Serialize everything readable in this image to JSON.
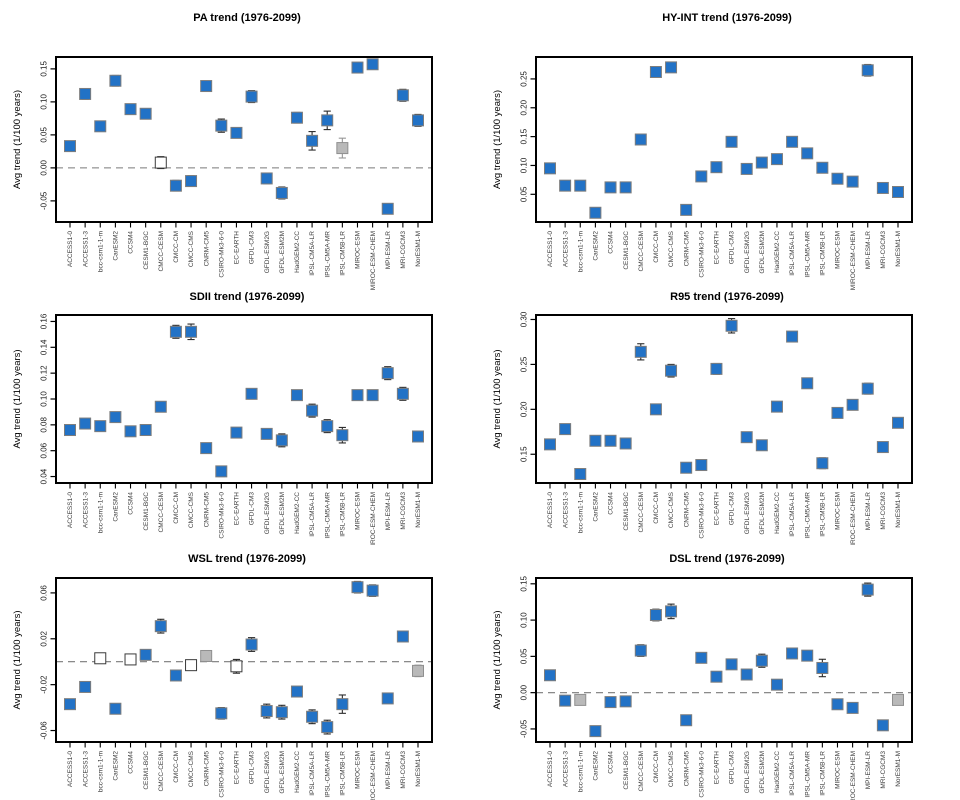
{
  "page": {
    "background": "#ffffff"
  },
  "colors": {
    "marker_blue": "#2272c6",
    "marker_blue_edge": "#7d7d7d",
    "marker_gray": "#b9b9b9",
    "marker_gray_edge": "#8f8f8f",
    "marker_open_fill": "#ffffff",
    "marker_open_edge": "#3a3a3a",
    "errorbar_dark": "#2b2b2b",
    "errorbar_gray": "#969696",
    "dashed_line": "#7a7a7a",
    "axis": "#000000"
  },
  "chart_data": [
    {
      "type": "scatter",
      "title": "PA trend (1976-2099)",
      "ylabel": "Avg trend (1/100 years)",
      "categories": [
        "ACCESS1-0",
        "ACCESS1-3",
        "bcc-csm1-1-m",
        "CanESM2",
        "CCSM4",
        "CESM1-BGC",
        "CMCC-CESM",
        "CMCC-CM",
        "CMCC-CMS",
        "CNRM-CM5",
        "CSIRO-Mk3-6-0",
        "EC-EARTH",
        "GFDL-CM3",
        "GFDL-ESM2G",
        "GFDL-ESM2M",
        "HadGEM2-CC",
        "IPSL-CM5A-LR",
        "IPSL-CM5A-MR",
        "IPSL-CM5B-LR",
        "MIROC-ESM",
        "MIROC-ESM-CHEM",
        "MPI-ESM-LR",
        "MRI-CGCM3",
        "NorESM1-M"
      ],
      "values": [
        0.033,
        0.112,
        0.063,
        0.132,
        0.089,
        0.082,
        0.008,
        -0.027,
        -0.02,
        0.124,
        0.064,
        0.053,
        0.108,
        -0.016,
        -0.038,
        0.076,
        0.041,
        0.072,
        0.03,
        0.152,
        0.157,
        -0.062,
        0.11,
        0.072
      ],
      "errors": [
        0.005,
        0.008,
        0.007,
        0.008,
        0.005,
        0.005,
        0.009,
        0.008,
        0.008,
        0.005,
        0.01,
        0.006,
        0.009,
        0.008,
        0.009,
        0.008,
        0.014,
        0.014,
        0.015,
        0.006,
        0.006,
        0.006,
        0.009,
        0.009
      ],
      "marker_overrides": {
        "6": "open",
        "18": "gray"
      },
      "yticks": [
        -0.05,
        0.0,
        0.05,
        0.1,
        0.15
      ],
      "ylim": [
        -0.082,
        0.168
      ],
      "zero_dashed_line": true,
      "grid": false,
      "legend": false
    },
    {
      "type": "scatter",
      "title": "HY-INT trend (1976-2099)",
      "ylabel": "Avg trend (1/100 years)",
      "categories": [
        "ACCESS1-0",
        "ACCESS1-3",
        "bcc-csm1-1-m",
        "CanESM2",
        "CCSM4",
        "CESM1-BGC",
        "CMCC-CESM",
        "CMCC-CM",
        "CMCC-CMS",
        "CNRM-CM5",
        "CSIRO-Mk3-6-0",
        "EC-EARTH",
        "GFDL-CM3",
        "GFDL-ESM2G",
        "GFDL-ESM2M",
        "HadGEM2-CC",
        "IPSL-CM5A-LR",
        "IPSL-CM5A-MR",
        "IPSL-CM5B-LR",
        "MIROC-ESM",
        "MIROC-ESM-CHEM",
        "MPI-ESM-LR",
        "MRI-CGCM3",
        "NorESM1-M"
      ],
      "values": [
        0.095,
        0.065,
        0.065,
        0.018,
        0.062,
        0.062,
        0.145,
        0.262,
        0.27,
        0.023,
        0.081,
        0.097,
        0.141,
        0.094,
        0.105,
        0.111,
        0.141,
        0.121,
        0.096,
        0.077,
        0.072,
        0.265,
        0.061,
        0.054
      ],
      "errors": [
        0.004,
        0.004,
        0.004,
        0.003,
        0.003,
        0.004,
        0.007,
        0.009,
        0.007,
        0.003,
        0.004,
        0.004,
        0.004,
        0.004,
        0.004,
        0.004,
        0.004,
        0.005,
        0.006,
        0.004,
        0.004,
        0.01,
        0.004,
        0.004
      ],
      "marker_overrides": {},
      "yticks": [
        0.05,
        0.1,
        0.15,
        0.2,
        0.25
      ],
      "ylim": [
        0.002,
        0.288
      ],
      "zero_dashed_line": false,
      "grid": false,
      "legend": false
    },
    {
      "type": "scatter",
      "title": "SDII trend (1976-2099)",
      "ylabel": "Avg trend (1/100 years)",
      "categories": [
        "ACCESS1-0",
        "ACCESS1-3",
        "bcc-csm1-1-m",
        "CanESM2",
        "CCSM4",
        "CESM1-BGC",
        "CMCC-CESM",
        "CMCC-CM",
        "CMCC-CMS",
        "CNRM-CM5",
        "CSIRO-Mk3-6-0",
        "EC-EARTH",
        "GFDL-CM3",
        "GFDL-ESM2G",
        "GFDL-ESM2M",
        "HadGEM2-CC",
        "IPSL-CM5A-LR",
        "IPSL-CM5A-MR",
        "IPSL-CM5B-LR",
        "MIROC-ESM",
        "MIROC-ESM-CHEM",
        "MPI-ESM-LR",
        "MRI-CGCM3",
        "NorESM1-M"
      ],
      "values": [
        0.076,
        0.081,
        0.079,
        0.086,
        0.075,
        0.076,
        0.094,
        0.152,
        0.152,
        0.062,
        0.044,
        0.074,
        0.104,
        0.073,
        0.068,
        0.103,
        0.091,
        0.079,
        0.072,
        0.103,
        0.103,
        0.12,
        0.104,
        0.071
      ],
      "errors": [
        0.003,
        0.003,
        0.003,
        0.003,
        0.003,
        0.003,
        0.004,
        0.005,
        0.006,
        0.003,
        0.004,
        0.003,
        0.004,
        0.004,
        0.005,
        0.003,
        0.005,
        0.005,
        0.006,
        0.003,
        0.003,
        0.005,
        0.005,
        0.004
      ],
      "marker_overrides": {},
      "yticks": [
        0.04,
        0.06,
        0.08,
        0.1,
        0.12,
        0.14,
        0.16
      ],
      "ylim": [
        0.035,
        0.165
      ],
      "zero_dashed_line": false,
      "grid": false,
      "legend": false
    },
    {
      "type": "scatter",
      "title": "R95 trend (1976-2099)",
      "ylabel": "Avg trend (1/100 years)",
      "categories": [
        "ACCESS1-0",
        "ACCESS1-3",
        "bcc-csm1-1-m",
        "CanESM2",
        "CCSM4",
        "CESM1-BGC",
        "CMCC-CESM",
        "CMCC-CM",
        "CMCC-CMS",
        "CNRM-CM5",
        "CSIRO-Mk3-6-0",
        "EC-EARTH",
        "GFDL-CM3",
        "GFDL-ESM2G",
        "GFDL-ESM2M",
        "HadGEM2-CC",
        "IPSL-CM5A-LR",
        "IPSL-CM5A-MR",
        "IPSL-CM5B-LR",
        "MIROC-ESM",
        "MIROC-ESM-CHEM",
        "MPI-ESM-LR",
        "MRI-CGCM3",
        "NorESM1-M"
      ],
      "values": [
        0.161,
        0.178,
        0.128,
        0.165,
        0.165,
        0.162,
        0.264,
        0.2,
        0.243,
        0.135,
        0.138,
        0.245,
        0.293,
        0.169,
        0.16,
        0.203,
        0.281,
        0.229,
        0.14,
        0.196,
        0.205,
        0.223,
        0.158,
        0.185
      ],
      "errors": [
        0.003,
        0.003,
        0.003,
        0.003,
        0.003,
        0.005,
        0.009,
        0.004,
        0.007,
        0.003,
        0.004,
        0.006,
        0.008,
        0.005,
        0.005,
        0.004,
        0.005,
        0.005,
        0.006,
        0.004,
        0.004,
        0.006,
        0.004,
        0.005
      ],
      "marker_overrides": {},
      "yticks": [
        0.15,
        0.2,
        0.25,
        0.3
      ],
      "ylim": [
        0.118,
        0.305
      ],
      "zero_dashed_line": false,
      "grid": false,
      "legend": false
    },
    {
      "type": "scatter",
      "title": "WSL trend (1976-2099)",
      "ylabel": "Avg trend (1/100 years)",
      "categories": [
        "ACCESS1-0",
        "ACCESS1-3",
        "bcc-csm1-1-m",
        "CanESM2",
        "CCSM4",
        "CESM1-BGC",
        "CMCC-CESM",
        "CMCC-CM",
        "CMCC-CMS",
        "CNRM-CM5",
        "CSIRO-Mk3-6-0",
        "EC-EARTH",
        "GFDL-CM3",
        "GFDL-ESM2G",
        "GFDL-ESM2M",
        "HadGEM2-CC",
        "IPSL-CM5A-LR",
        "IPSL-CM5A-MR",
        "IPSL-CM5B-LR",
        "MIROC-ESM",
        "MIROC-ESM-CHEM",
        "MPI-ESM-LR",
        "MRI-CGCM3",
        "NorESM1-M"
      ],
      "values": [
        -0.037,
        -0.022,
        0.003,
        -0.041,
        0.002,
        0.006,
        0.031,
        -0.012,
        -0.003,
        0.005,
        -0.045,
        -0.004,
        0.015,
        -0.043,
        -0.044,
        -0.026,
        -0.048,
        -0.057,
        -0.037,
        0.065,
        0.062,
        -0.032,
        0.022,
        -0.008
      ],
      "errors": [
        0.003,
        0.004,
        0.003,
        0.003,
        0.003,
        0.003,
        0.006,
        0.004,
        0.004,
        0.004,
        0.005,
        0.006,
        0.006,
        0.006,
        0.006,
        0.004,
        0.006,
        0.006,
        0.008,
        0.005,
        0.005,
        0.004,
        0.004,
        0.005
      ],
      "marker_overrides": {
        "2": "open",
        "4": "open",
        "8": "open",
        "9": "gray",
        "11": "open",
        "23": "gray"
      },
      "yticks": [
        -0.06,
        -0.02,
        0.02,
        0.06
      ],
      "ylim": [
        -0.07,
        0.073
      ],
      "zero_dashed_line": true,
      "grid": false,
      "legend": false
    },
    {
      "type": "scatter",
      "title": "DSL trend (1976-2099)",
      "ylabel": "Avg trend (1/100 years)",
      "categories": [
        "ACCESS1-0",
        "ACCESS1-3",
        "bcc-csm1-1-m",
        "CanESM2",
        "CCSM4",
        "CESM1-BGC",
        "CMCC-CESM",
        "CMCC-CM",
        "CMCC-CMS",
        "CNRM-CM5",
        "CSIRO-Mk3-6-0",
        "EC-EARTH",
        "GFDL-CM3",
        "GFDL-ESM2G",
        "GFDL-ESM2M",
        "HadGEM2-CC",
        "IPSL-CM5A-LR",
        "IPSL-CM5A-MR",
        "IPSL-CM5B-LR",
        "MIROC-ESM",
        "MIROC-ESM-CHEM",
        "MPI-ESM-LR",
        "MRI-CGCM3",
        "NorESM1-M"
      ],
      "values": [
        0.024,
        -0.011,
        -0.01,
        -0.053,
        -0.013,
        -0.012,
        0.058,
        0.107,
        0.112,
        -0.038,
        0.048,
        0.022,
        0.039,
        0.025,
        0.044,
        0.011,
        0.054,
        0.051,
        0.034,
        -0.016,
        -0.021,
        0.142,
        -0.045,
        -0.01
      ],
      "errors": [
        0.005,
        0.004,
        0.006,
        0.004,
        0.004,
        0.004,
        0.008,
        0.008,
        0.01,
        0.004,
        0.007,
        0.005,
        0.006,
        0.006,
        0.009,
        0.004,
        0.005,
        0.005,
        0.012,
        0.004,
        0.004,
        0.009,
        0.004,
        0.007
      ],
      "marker_overrides": {
        "2": "gray",
        "23": "gray"
      },
      "yticks": [
        -0.05,
        0.0,
        0.05,
        0.1,
        0.15
      ],
      "ylim": [
        -0.068,
        0.158
      ],
      "zero_dashed_line": true,
      "grid": false,
      "legend": false
    }
  ]
}
